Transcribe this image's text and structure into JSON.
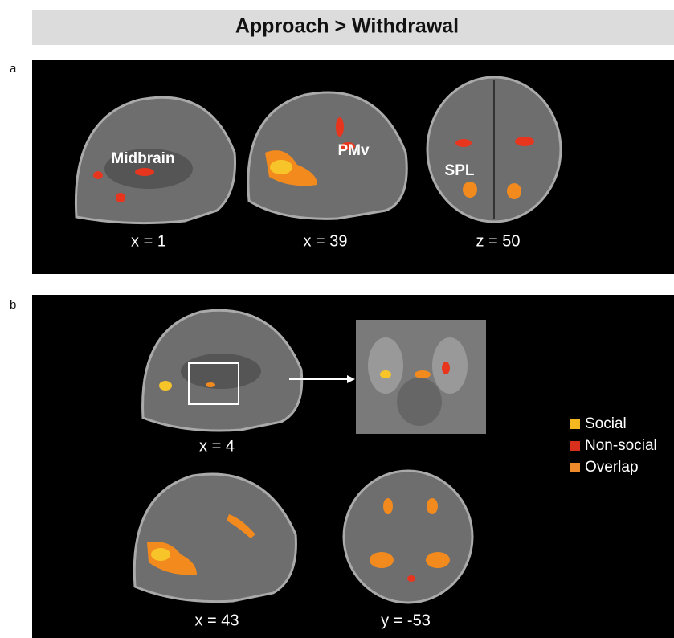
{
  "header": {
    "title": "Approach > Withdrawal"
  },
  "panel_a": {
    "label": "a",
    "images": [
      {
        "coordinate": "x = 1",
        "region_label": "Midbrain"
      },
      {
        "coordinate": "x = 39",
        "region_label": "PMv"
      },
      {
        "coordinate": "z = 50",
        "region_label": "SPL"
      }
    ]
  },
  "panel_b": {
    "label": "b",
    "images": [
      {
        "coordinate": "x = 4"
      },
      {
        "coordinate": "x = 43"
      },
      {
        "coordinate": "y = -53"
      }
    ],
    "legend": [
      {
        "label": "Social",
        "color": "#f5b820"
      },
      {
        "label": "Non-social",
        "color": "#d8301c"
      },
      {
        "label": "Overlap",
        "color": "#ef8a2a"
      }
    ]
  }
}
